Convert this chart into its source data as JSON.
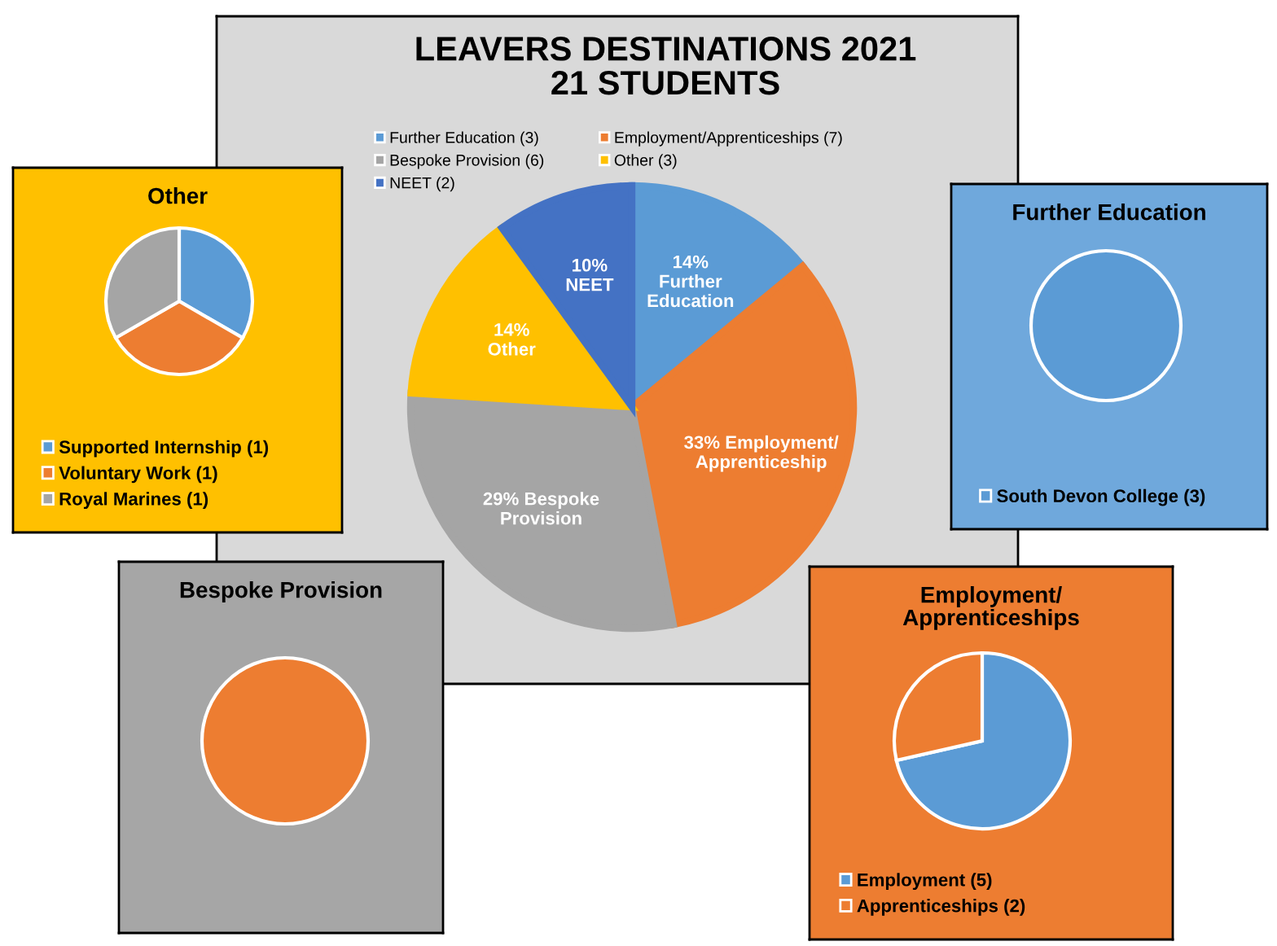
{
  "chart_data": [
    {
      "type": "pie",
      "title": "LEAVERS DESTINATIONS 2021",
      "subtitle": "21 STUDENTS",
      "categories": [
        "Further Education (3)",
        "Employment/Apprenticeships (7)",
        "Bespoke Provision (6)",
        "Other (3)",
        "NEET (2)"
      ],
      "values": [
        14,
        33,
        29,
        14,
        10
      ],
      "colors": [
        "#5b9bd5",
        "#ed7d31",
        "#a5a5a5",
        "#ffc000",
        "#4472c4"
      ],
      "value_labels": [
        "14%\nFurther\nEducation",
        "33% Employment/\nApprenticeship",
        "29% Bespoke\nProvision",
        "14%\nOther",
        "10%\nNEET"
      ],
      "legend": "top"
    },
    {
      "type": "pie",
      "title": "Other",
      "categories": [
        "Supported Internship (1)",
        "Voluntary Work (1)",
        "Royal Marines (1)"
      ],
      "values": [
        1,
        1,
        1
      ],
      "colors": [
        "#5b9bd5",
        "#ed7d31",
        "#a5a5a5"
      ],
      "legend": "bottom"
    },
    {
      "type": "pie",
      "title": "Further Education",
      "categories": [
        "South Devon College (3)"
      ],
      "values": [
        3
      ],
      "colors": [
        "#5b9bd5"
      ],
      "legend": "bottom"
    },
    {
      "type": "pie",
      "title": "Bespoke Provision",
      "categories": [
        null
      ],
      "values": [
        100
      ],
      "colors": [
        "#ed7d31"
      ]
    },
    {
      "type": "pie",
      "title": "Employment/\nApprenticeships",
      "categories": [
        "Employment (5)",
        "Apprenticeships (2)"
      ],
      "values": [
        5,
        2
      ],
      "colors": [
        "#5b9bd5",
        "#ed7d31"
      ],
      "legend": "bottom"
    }
  ]
}
